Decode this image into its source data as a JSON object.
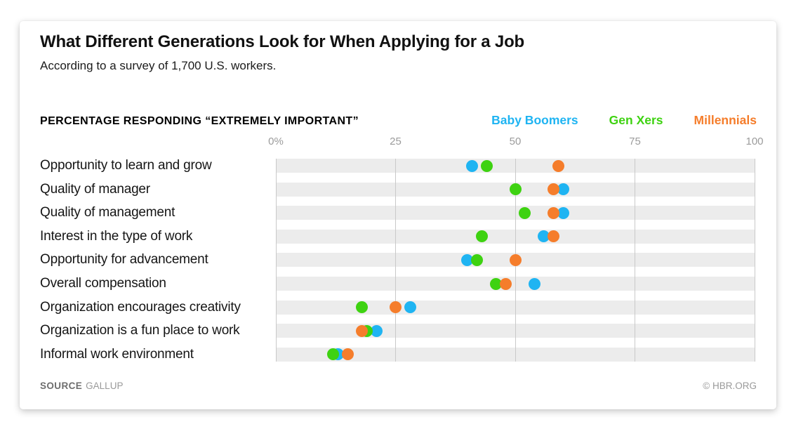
{
  "header": {
    "title": "What Different Generations Look for When Applying for a Job",
    "subtitle": "According to a survey of 1,700 U.S. workers.",
    "axis_label": "PERCENTAGE RESPONDING “EXTREMELY IMPORTANT”"
  },
  "legend": [
    {
      "label": "Baby Boomers",
      "color": "#1fb4f2"
    },
    {
      "label": "Gen Xers",
      "color": "#3ed211"
    },
    {
      "label": "Millennials",
      "color": "#f57d2b"
    }
  ],
  "chart_data": {
    "type": "scatter",
    "subtype": "dot-plot",
    "title": "What Different Generations Look for When Applying for a Job",
    "xlabel": "Percentage responding extremely important",
    "ylabel": "",
    "xlim": [
      0,
      100
    ],
    "ticks": [
      "0%",
      "25",
      "50",
      "75",
      "100"
    ],
    "tick_values": [
      0,
      25,
      50,
      75,
      100
    ],
    "grid_values": [
      0,
      25,
      50,
      75,
      100
    ],
    "grid": true,
    "legend_position": "top-right",
    "categories": [
      "Opportunity to learn and grow",
      "Quality of manager",
      "Quality of management",
      "Interest in the type of work",
      "Opportunity for advancement",
      "Overall compensation",
      "Organization encourages creativity",
      "Organization is a fun place to work",
      "Informal work environment"
    ],
    "series": [
      {
        "name": "Baby Boomers",
        "color": "#1fb4f2",
        "values": [
          41,
          60,
          60,
          56,
          40,
          54,
          28,
          21,
          13
        ]
      },
      {
        "name": "Gen Xers",
        "color": "#3ed211",
        "values": [
          44,
          50,
          52,
          43,
          42,
          46,
          18,
          19,
          12
        ]
      },
      {
        "name": "Millennials",
        "color": "#f57d2b",
        "values": [
          59,
          58,
          58,
          58,
          50,
          48,
          25,
          18,
          15
        ]
      }
    ],
    "stripe_color": "#ececec",
    "gridline_color": "#c9c9c9"
  },
  "footer": {
    "source_label": "SOURCE",
    "source_value": "GALLUP",
    "credit": "© HBR.ORG"
  }
}
